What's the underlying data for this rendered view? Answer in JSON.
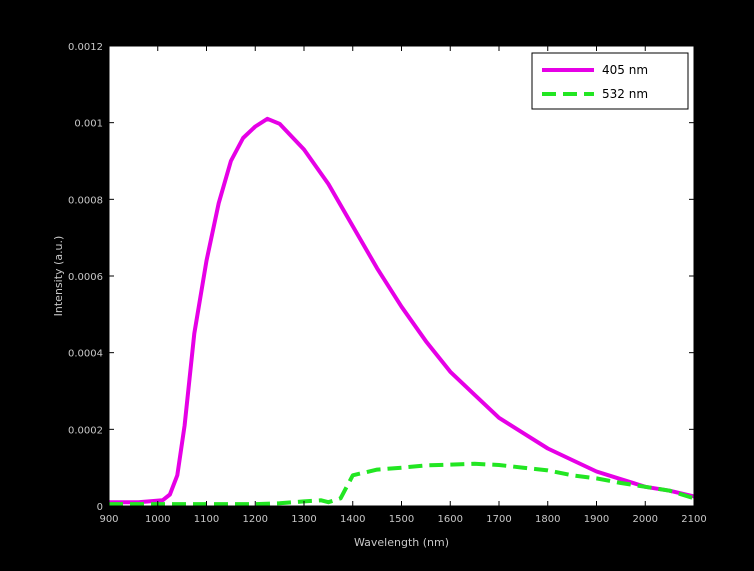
{
  "chart_data": {
    "type": "line",
    "title": "",
    "xlabel": "Wavelength (nm)",
    "ylabel": "Intensity (a.u.)",
    "xlim": [
      900,
      2100
    ],
    "ylim": [
      0,
      0.0012
    ],
    "x_ticks": [
      900,
      1000,
      1100,
      1200,
      1300,
      1400,
      1500,
      1600,
      1700,
      1800,
      1900,
      2000,
      2100
    ],
    "x_tick_labels": [
      "900",
      "1000",
      "1100",
      "1200",
      "1300",
      "1400",
      "1500",
      "1600",
      "1700",
      "1800",
      "1900",
      "2000",
      "2100"
    ],
    "y_ticks": [
      0,
      0.0002,
      0.0004,
      0.0006,
      0.0008,
      0.001,
      0.0012
    ],
    "y_tick_labels": [
      "0",
      "0.0002",
      "0.0004",
      "0.0006",
      "0.0008",
      "0.001",
      "0.0012"
    ],
    "grid": false,
    "legend_position": "top-right",
    "colors": {
      "figure_background": "#000000",
      "plot_background": "#ffffff",
      "axis_text": "#c8c8c8"
    },
    "series": [
      {
        "name": "405 nm",
        "color": "#e600e6",
        "style": "solid",
        "x": [
          900,
          960,
          1010,
          1025,
          1040,
          1055,
          1075,
          1100,
          1125,
          1150,
          1175,
          1200,
          1225,
          1250,
          1300,
          1350,
          1400,
          1450,
          1500,
          1550,
          1600,
          1650,
          1700,
          1750,
          1800,
          1850,
          1900,
          1950,
          2000,
          2050,
          2100
        ],
        "y": [
          1e-05,
          1e-05,
          1.5e-05,
          3e-05,
          8e-05,
          0.00021,
          0.00045,
          0.00064,
          0.00079,
          0.0009,
          0.00096,
          0.00099,
          0.00101,
          0.000997,
          0.00093,
          0.00084,
          0.00073,
          0.00062,
          0.00052,
          0.00043,
          0.00035,
          0.00029,
          0.00023,
          0.00019,
          0.00015,
          0.00012,
          9e-05,
          7e-05,
          5e-05,
          4e-05,
          2.5e-05
        ]
      },
      {
        "name": "532 nm",
        "color": "#22e622",
        "style": "dashed",
        "x": [
          900,
          1000,
          1100,
          1200,
          1250,
          1300,
          1335,
          1350,
          1375,
          1400,
          1450,
          1500,
          1550,
          1600,
          1650,
          1700,
          1750,
          1800,
          1850,
          1900,
          1950,
          2000,
          2050,
          2100
        ],
        "y": [
          5e-06,
          5e-06,
          5e-06,
          5e-06,
          7e-06,
          1.2e-05,
          1.5e-05,
          1e-05,
          2e-05,
          8e-05,
          9.5e-05,
          0.0001,
          0.000106,
          0.000108,
          0.00011,
          0.000107,
          0.0001,
          9.3e-05,
          8e-05,
          7.2e-05,
          6e-05,
          5e-05,
          4e-05,
          2e-05
        ]
      }
    ]
  }
}
